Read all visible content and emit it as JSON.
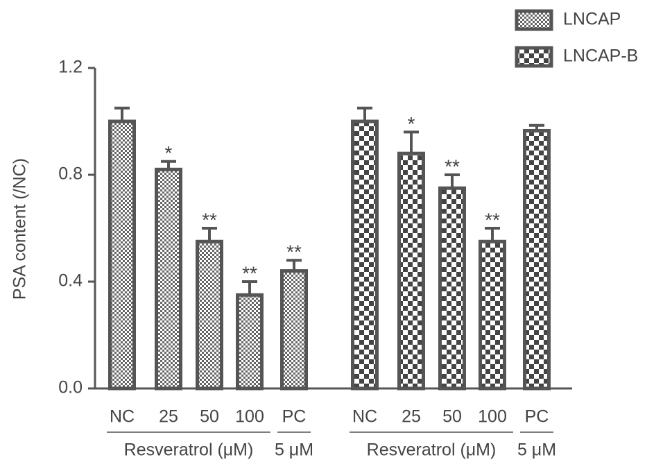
{
  "chart_data": {
    "type": "bar",
    "ylabel": "PSA content (/NC)",
    "categories": [
      "NC",
      "25",
      "50",
      "100",
      "PC"
    ],
    "group_labels": [
      "Resveratrol (μM)",
      "5 μM"
    ],
    "series": [
      {
        "name": "LNCAP",
        "color": "#555555",
        "values": [
          1.0,
          0.82,
          0.55,
          0.35,
          0.44
        ],
        "errors": [
          0.05,
          0.03,
          0.05,
          0.05,
          0.04
        ],
        "significance": [
          null,
          "*",
          "**",
          "**",
          "**"
        ]
      },
      {
        "name": "LNCAP-B",
        "color": "#555555",
        "values": [
          1.0,
          0.88,
          0.75,
          0.55,
          0.965
        ],
        "errors": [
          0.05,
          0.08,
          0.05,
          0.05,
          0.02
        ],
        "significance": [
          null,
          "*",
          "**",
          "**",
          null
        ]
      }
    ],
    "ylim": [
      0,
      1.2
    ],
    "yticks": [
      {
        "value": 0,
        "label": "0.0"
      },
      0.4,
      0.8,
      1.2
    ],
    "legend": "top-right",
    "grid": false
  }
}
